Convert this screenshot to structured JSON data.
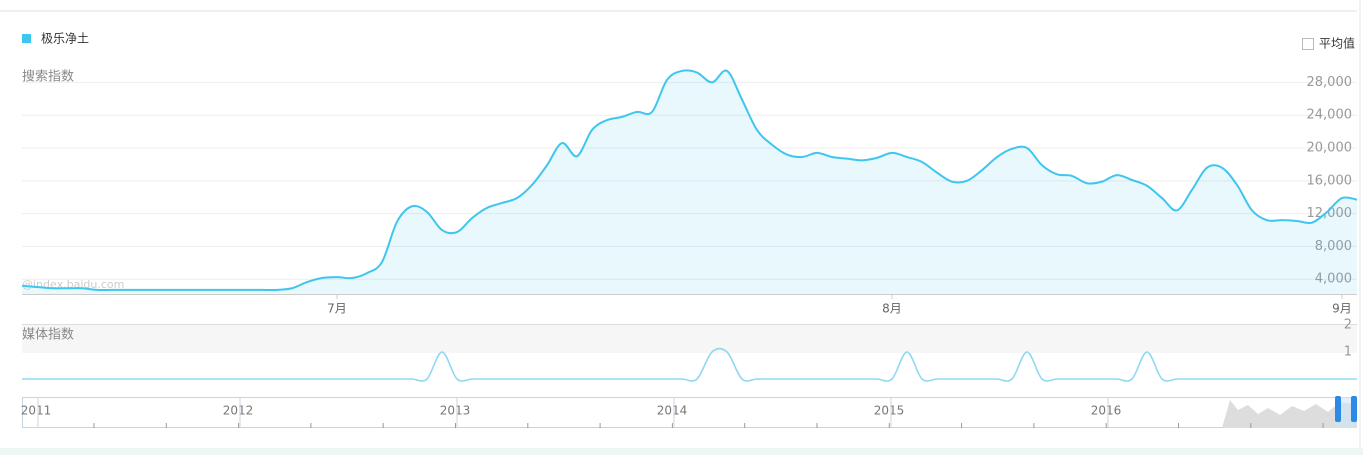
{
  "chart_data": [
    {
      "type": "area",
      "ylabel": "搜索指数",
      "watermark": "@index.baidu.com",
      "legend": "top-left",
      "grid": true,
      "categories": [
        null,
        null,
        null,
        null,
        null,
        null,
        null,
        null,
        null,
        null,
        null,
        null,
        null,
        null,
        null,
        null,
        null,
        null,
        null,
        null,
        null,
        "7月",
        null,
        null,
        null,
        null,
        null,
        null,
        null,
        null,
        null,
        null,
        null,
        null,
        null,
        null,
        null,
        null,
        null,
        null,
        null,
        null,
        null,
        null,
        null,
        null,
        null,
        null,
        null,
        null,
        null,
        null,
        null,
        null,
        null,
        null,
        null,
        null,
        "8月",
        null,
        null,
        null,
        null,
        null,
        null,
        null,
        null,
        null,
        null,
        null,
        null,
        null,
        null,
        null,
        null,
        null,
        null,
        null,
        null,
        null,
        null,
        null,
        null,
        null,
        null,
        null,
        null,
        null,
        "9月",
        null
      ],
      "series": [
        {
          "name": "极乐净土",
          "color": "#3ec6ee",
          "values": [
            3200,
            3050,
            2900,
            2900,
            2900,
            2700,
            2700,
            2700,
            2700,
            2700,
            2700,
            2700,
            2700,
            2700,
            2700,
            2700,
            2700,
            2700,
            2900,
            3650,
            4150,
            4250,
            4150,
            4750,
            6100,
            11000,
            12900,
            12200,
            10000,
            9750,
            11450,
            12700,
            13300,
            13900,
            15500,
            17900,
            20600,
            19000,
            22200,
            23400,
            23800,
            24400,
            24400,
            28300,
            29400,
            29200,
            28000,
            29400,
            25900,
            22200,
            20400,
            19200,
            18900,
            19400,
            18900,
            18700,
            18500,
            18800,
            19400,
            18900,
            18300,
            17000,
            15900,
            16000,
            17300,
            18900,
            19900,
            20000,
            17900,
            16800,
            16600,
            15700,
            15900,
            16700,
            16100,
            15400,
            13900,
            12400,
            14900,
            17600,
            17600,
            15500,
            12400,
            11200,
            11200,
            11100,
            10900,
            12200,
            13900,
            13700
          ]
        }
      ],
      "ylim": [
        2200,
        30000
      ],
      "yticks": [
        {
          "value": 4000,
          "label": "4,000"
        },
        {
          "value": 8000,
          "label": "8,000"
        },
        {
          "value": 12000,
          "label": "12,000"
        },
        {
          "value": 16000,
          "label": "16,000"
        },
        {
          "value": 20000,
          "label": "20,000"
        },
        {
          "value": 24000,
          "label": "24,000"
        },
        {
          "value": 28000,
          "label": "28,000"
        }
      ]
    },
    {
      "type": "line",
      "ylabel": "媒体指数",
      "series": [
        {
          "color": "#8fd8f2",
          "values": [
            0,
            0,
            0,
            0,
            0,
            0,
            0,
            0,
            0,
            0,
            0,
            0,
            0,
            0,
            0,
            0,
            0,
            0,
            0,
            0,
            0,
            0,
            0,
            0,
            0,
            0,
            0,
            0,
            1,
            0,
            0,
            0,
            0,
            0,
            0,
            0,
            0,
            0,
            0,
            0,
            0,
            0,
            0,
            0,
            0,
            0,
            1,
            1,
            0,
            0,
            0,
            0,
            0,
            0,
            0,
            0,
            0,
            0,
            0,
            1,
            0,
            0,
            0,
            0,
            0,
            0,
            0,
            1,
            0,
            0,
            0,
            0,
            0,
            0,
            0,
            1,
            0,
            0,
            0,
            0,
            0,
            0,
            0,
            0,
            0,
            0,
            0,
            0,
            0,
            0
          ]
        }
      ],
      "ylim": [
        0,
        2
      ],
      "yticks": [
        1,
        2
      ]
    }
  ],
  "average_toggle": "平均值",
  "navigator": {
    "years": [
      "2011",
      "2012",
      "2013",
      "2014",
      "2015",
      "2016"
    ]
  }
}
